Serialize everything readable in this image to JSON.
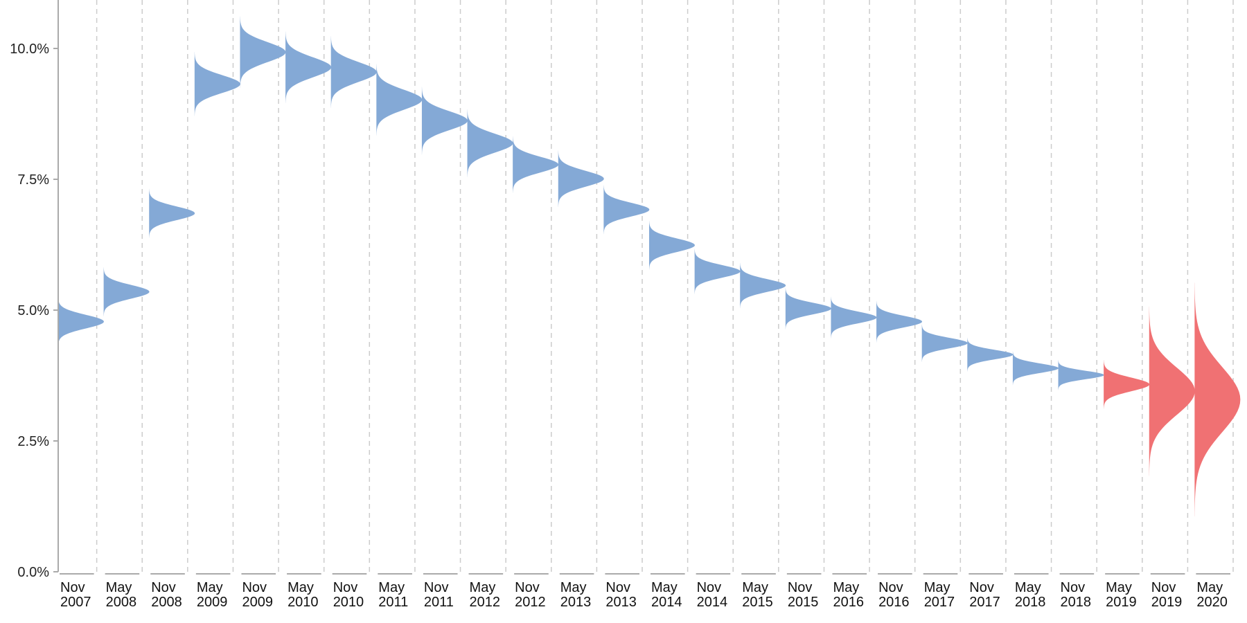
{
  "chart_data": {
    "type": "area",
    "title": "",
    "xlabel": "",
    "ylabel": "",
    "ylim": [
      0,
      0.107
    ],
    "y_ticks": [
      {
        "value": 0.0,
        "label": "0.0%"
      },
      {
        "value": 0.025,
        "label": "2.5%"
      },
      {
        "value": 0.05,
        "label": "5.0%"
      },
      {
        "value": 0.075,
        "label": "7.5%"
      },
      {
        "value": 0.1,
        "label": "10.0%"
      }
    ],
    "grid": "vertical dashed separators between periods",
    "colors": {
      "actual": "#84a9d6",
      "forecast": "#f07173",
      "axis": "#aaaaaa",
      "grid": "#cccccc"
    },
    "categories": [
      {
        "month": "Nov",
        "year": "2007"
      },
      {
        "month": "May",
        "year": "2008"
      },
      {
        "month": "Nov",
        "year": "2008"
      },
      {
        "month": "May",
        "year": "2009"
      },
      {
        "month": "Nov",
        "year": "2009"
      },
      {
        "month": "May",
        "year": "2010"
      },
      {
        "month": "Nov",
        "year": "2010"
      },
      {
        "month": "May",
        "year": "2011"
      },
      {
        "month": "Nov",
        "year": "2011"
      },
      {
        "month": "May",
        "year": "2012"
      },
      {
        "month": "Nov",
        "year": "2012"
      },
      {
        "month": "May",
        "year": "2013"
      },
      {
        "month": "Nov",
        "year": "2013"
      },
      {
        "month": "May",
        "year": "2014"
      },
      {
        "month": "Nov",
        "year": "2014"
      },
      {
        "month": "May",
        "year": "2015"
      },
      {
        "month": "Nov",
        "year": "2015"
      },
      {
        "month": "May",
        "year": "2016"
      },
      {
        "month": "Nov",
        "year": "2016"
      },
      {
        "month": "May",
        "year": "2017"
      },
      {
        "month": "Nov",
        "year": "2017"
      },
      {
        "month": "May",
        "year": "2018"
      },
      {
        "month": "Nov",
        "year": "2018"
      },
      {
        "month": "May",
        "year": "2019"
      },
      {
        "month": "Nov",
        "year": "2019"
      },
      {
        "month": "May",
        "year": "2020"
      }
    ],
    "distributions": [
      {
        "mean": 0.0478,
        "sd": 0.0013,
        "kind": "actual"
      },
      {
        "mean": 0.0535,
        "sd": 0.0013,
        "kind": "actual"
      },
      {
        "mean": 0.0685,
        "sd": 0.0013,
        "kind": "actual"
      },
      {
        "mean": 0.0932,
        "sd": 0.0017,
        "kind": "actual"
      },
      {
        "mean": 0.0993,
        "sd": 0.0019,
        "kind": "actual"
      },
      {
        "mean": 0.0964,
        "sd": 0.0019,
        "kind": "actual"
      },
      {
        "mean": 0.0955,
        "sd": 0.0019,
        "kind": "actual"
      },
      {
        "mean": 0.0902,
        "sd": 0.0019,
        "kind": "actual"
      },
      {
        "mean": 0.0862,
        "sd": 0.0018,
        "kind": "actual"
      },
      {
        "mean": 0.0819,
        "sd": 0.0018,
        "kind": "actual"
      },
      {
        "mean": 0.0778,
        "sd": 0.0015,
        "kind": "actual"
      },
      {
        "mean": 0.0751,
        "sd": 0.0015,
        "kind": "actual"
      },
      {
        "mean": 0.0692,
        "sd": 0.0013,
        "kind": "actual"
      },
      {
        "mean": 0.0624,
        "sd": 0.0013,
        "kind": "actual"
      },
      {
        "mean": 0.0574,
        "sd": 0.0012,
        "kind": "actual"
      },
      {
        "mean": 0.0547,
        "sd": 0.0012,
        "kind": "actual"
      },
      {
        "mean": 0.0503,
        "sd": 0.0011,
        "kind": "actual"
      },
      {
        "mean": 0.0486,
        "sd": 0.0011,
        "kind": "actual"
      },
      {
        "mean": 0.0478,
        "sd": 0.0011,
        "kind": "actual"
      },
      {
        "mean": 0.0437,
        "sd": 0.001,
        "kind": "actual"
      },
      {
        "mean": 0.0415,
        "sd": 0.0009,
        "kind": "actual"
      },
      {
        "mean": 0.0389,
        "sd": 0.0009,
        "kind": "actual"
      },
      {
        "mean": 0.0376,
        "sd": 0.0008,
        "kind": "actual"
      },
      {
        "mean": 0.0358,
        "sd": 0.0013,
        "kind": "forecast"
      },
      {
        "mean": 0.0345,
        "sd": 0.0045,
        "kind": "forecast"
      },
      {
        "mean": 0.0329,
        "sd": 0.0062,
        "kind": "forecast"
      }
    ]
  }
}
